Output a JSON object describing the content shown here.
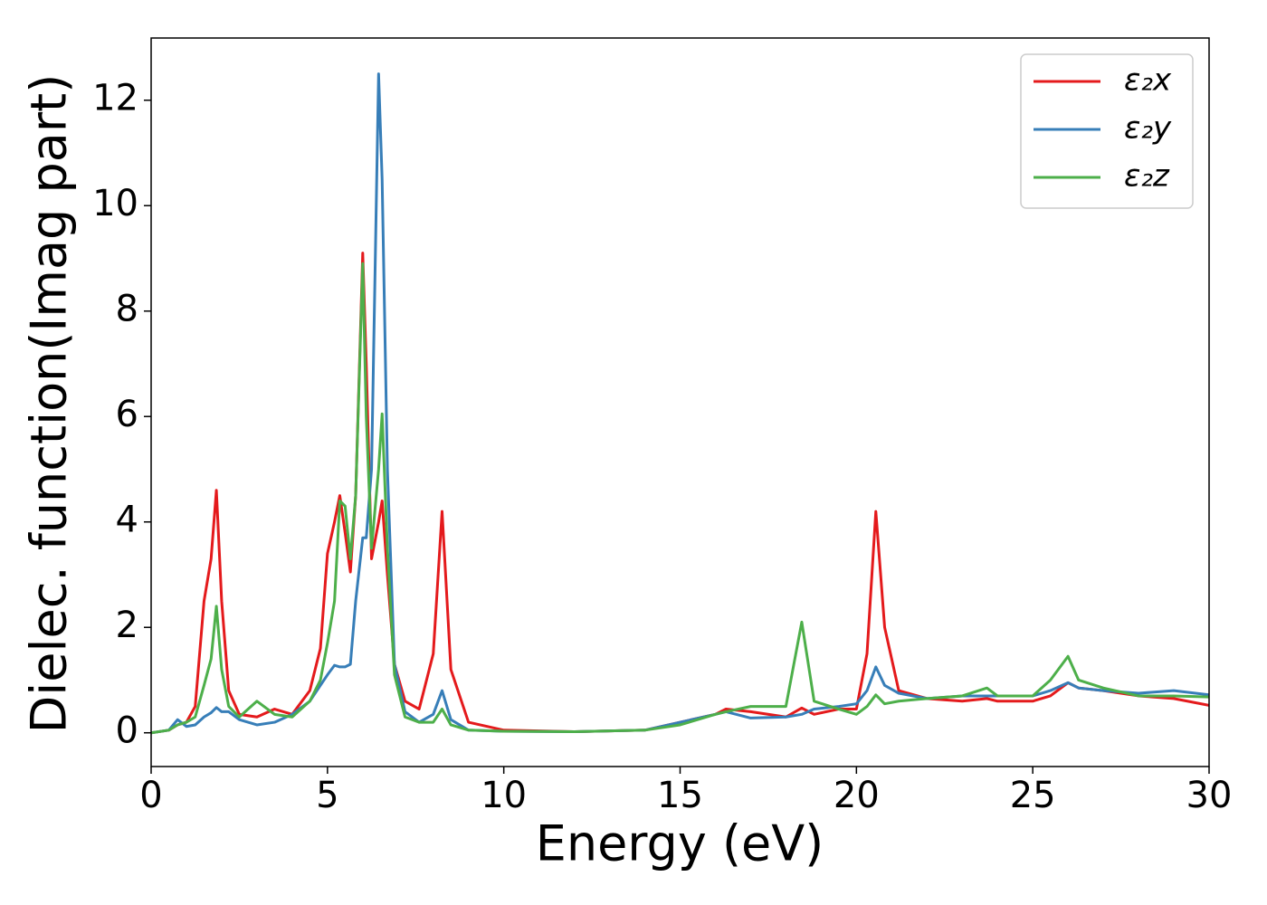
{
  "chart_data": {
    "type": "line",
    "xlabel": "Energy (eV)",
    "ylabel": "Dielec. function(Imag part)",
    "x": [
      0,
      0.5,
      0.75,
      1.0,
      1.25,
      1.5,
      1.7,
      1.85,
      2.0,
      2.2,
      2.5,
      3.0,
      3.5,
      4.0,
      4.5,
      4.8,
      5.0,
      5.2,
      5.35,
      5.5,
      5.65,
      5.8,
      6.0,
      6.1,
      6.25,
      6.45,
      6.55,
      6.7,
      6.9,
      7.2,
      7.6,
      8.0,
      8.25,
      8.5,
      9.0,
      10,
      12,
      14,
      15,
      16,
      16.3,
      17,
      18,
      18.45,
      18.8,
      19.5,
      20,
      20.3,
      20.55,
      20.8,
      21.2,
      22,
      23,
      23.7,
      24,
      25,
      25.5,
      26,
      26.3,
      27,
      28,
      29,
      30
    ],
    "series": [
      {
        "name": "ε₂x",
        "color": "#e41a1c",
        "values": [
          0,
          0.05,
          0.15,
          0.2,
          0.5,
          2.5,
          3.3,
          4.6,
          2.5,
          0.8,
          0.35,
          0.3,
          0.45,
          0.35,
          0.8,
          1.6,
          3.4,
          4.0,
          4.5,
          3.8,
          3.05,
          4.5,
          9.1,
          7.0,
          3.3,
          4.0,
          4.4,
          3.0,
          1.3,
          0.6,
          0.45,
          1.5,
          4.2,
          1.2,
          0.2,
          0.05,
          0.02,
          0.05,
          0.2,
          0.35,
          0.45,
          0.4,
          0.3,
          0.47,
          0.35,
          0.45,
          0.45,
          1.5,
          4.2,
          2.0,
          0.8,
          0.65,
          0.6,
          0.65,
          0.6,
          0.6,
          0.7,
          0.95,
          0.85,
          0.8,
          0.7,
          0.65,
          0.52
        ]
      },
      {
        "name": "ε₂y",
        "color": "#377eb8",
        "values": [
          0,
          0.05,
          0.25,
          0.12,
          0.15,
          0.3,
          0.38,
          0.48,
          0.4,
          0.4,
          0.25,
          0.15,
          0.2,
          0.35,
          0.6,
          0.9,
          1.1,
          1.28,
          1.25,
          1.25,
          1.3,
          2.5,
          3.7,
          3.7,
          5.0,
          12.5,
          10.5,
          5.0,
          1.3,
          0.4,
          0.2,
          0.35,
          0.8,
          0.25,
          0.05,
          0.03,
          0.02,
          0.05,
          0.2,
          0.35,
          0.4,
          0.28,
          0.3,
          0.35,
          0.45,
          0.5,
          0.55,
          0.8,
          1.25,
          0.9,
          0.75,
          0.65,
          0.7,
          0.7,
          0.7,
          0.7,
          0.8,
          0.95,
          0.85,
          0.8,
          0.75,
          0.8,
          0.72
        ]
      },
      {
        "name": "ε₂z",
        "color": "#4daf4a",
        "values": [
          0,
          0.05,
          0.15,
          0.2,
          0.3,
          0.9,
          1.4,
          2.4,
          1.2,
          0.5,
          0.3,
          0.6,
          0.35,
          0.3,
          0.6,
          1.0,
          1.7,
          2.5,
          4.4,
          4.3,
          3.3,
          4.5,
          8.9,
          6.0,
          3.5,
          5.0,
          6.05,
          3.5,
          1.1,
          0.3,
          0.2,
          0.2,
          0.45,
          0.15,
          0.05,
          0.03,
          0.02,
          0.05,
          0.15,
          0.35,
          0.4,
          0.5,
          0.5,
          2.1,
          0.6,
          0.45,
          0.35,
          0.5,
          0.72,
          0.55,
          0.6,
          0.65,
          0.7,
          0.85,
          0.7,
          0.7,
          1.0,
          1.45,
          1.0,
          0.85,
          0.7,
          0.7,
          0.68
        ]
      }
    ],
    "xlim": [
      0,
      30
    ],
    "xticks": [
      0,
      5,
      10,
      15,
      20,
      25,
      30
    ],
    "ylim": [
      -0.64,
      13.18
    ],
    "yticks": [
      0,
      2,
      4,
      6,
      8,
      10,
      12
    ],
    "grid": false,
    "legend": "upper right"
  }
}
